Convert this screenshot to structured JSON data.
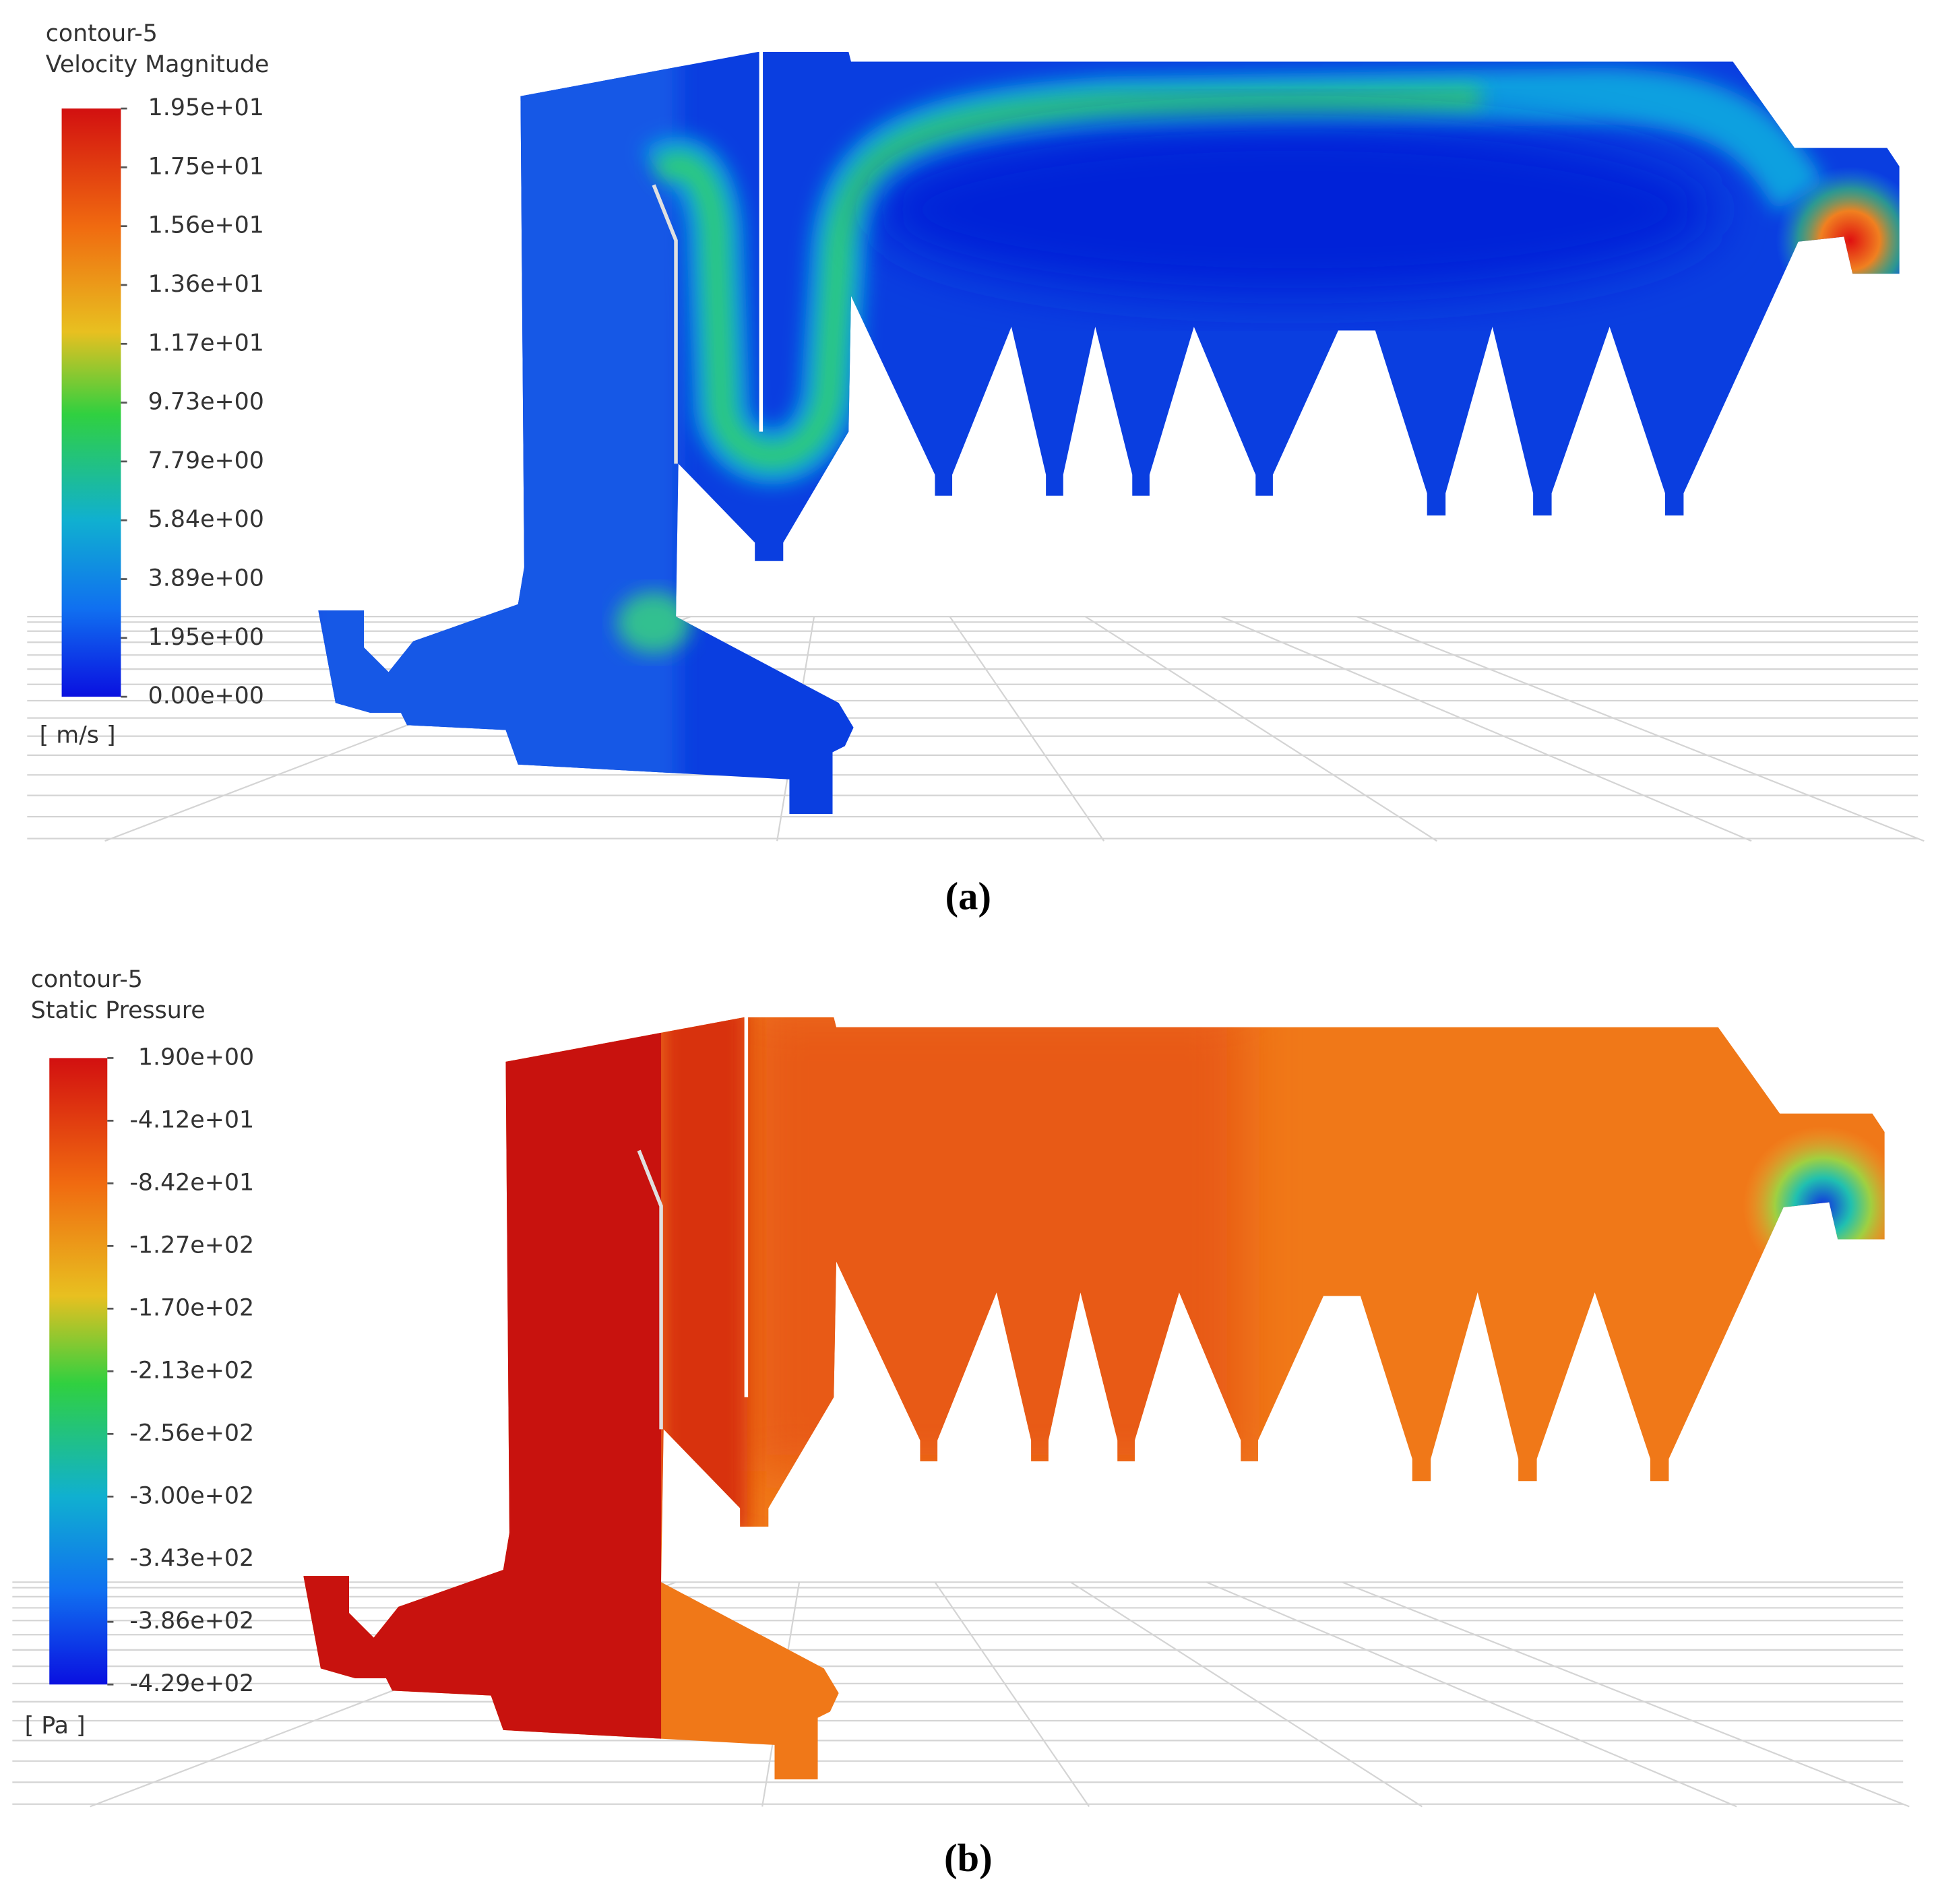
{
  "panels": [
    {
      "title": "contour-5",
      "quantity": "Velocity Magnitude",
      "legend_labels": [
        "1.95e+01",
        "1.75e+01",
        "1.56e+01",
        "1.36e+01",
        "1.17e+01",
        "9.73e+00",
        "7.79e+00",
        "5.84e+00",
        "3.89e+00",
        "1.95e+00",
        "0.00e+00"
      ],
      "unit": "[ m/s ]",
      "caption": "(a)"
    },
    {
      "title": "contour-5",
      "quantity": "Static Pressure",
      "legend_labels": [
        "1.90e+00",
        "-4.12e+01",
        "-8.42e+01",
        "-1.27e+02",
        "-1.70e+02",
        "-2.13e+02",
        "-2.56e+02",
        "-3.00e+02",
        "-3.43e+02",
        "-3.86e+02",
        "-4.29e+02"
      ],
      "unit": "[ Pa ]",
      "caption": "(b)"
    }
  ]
}
